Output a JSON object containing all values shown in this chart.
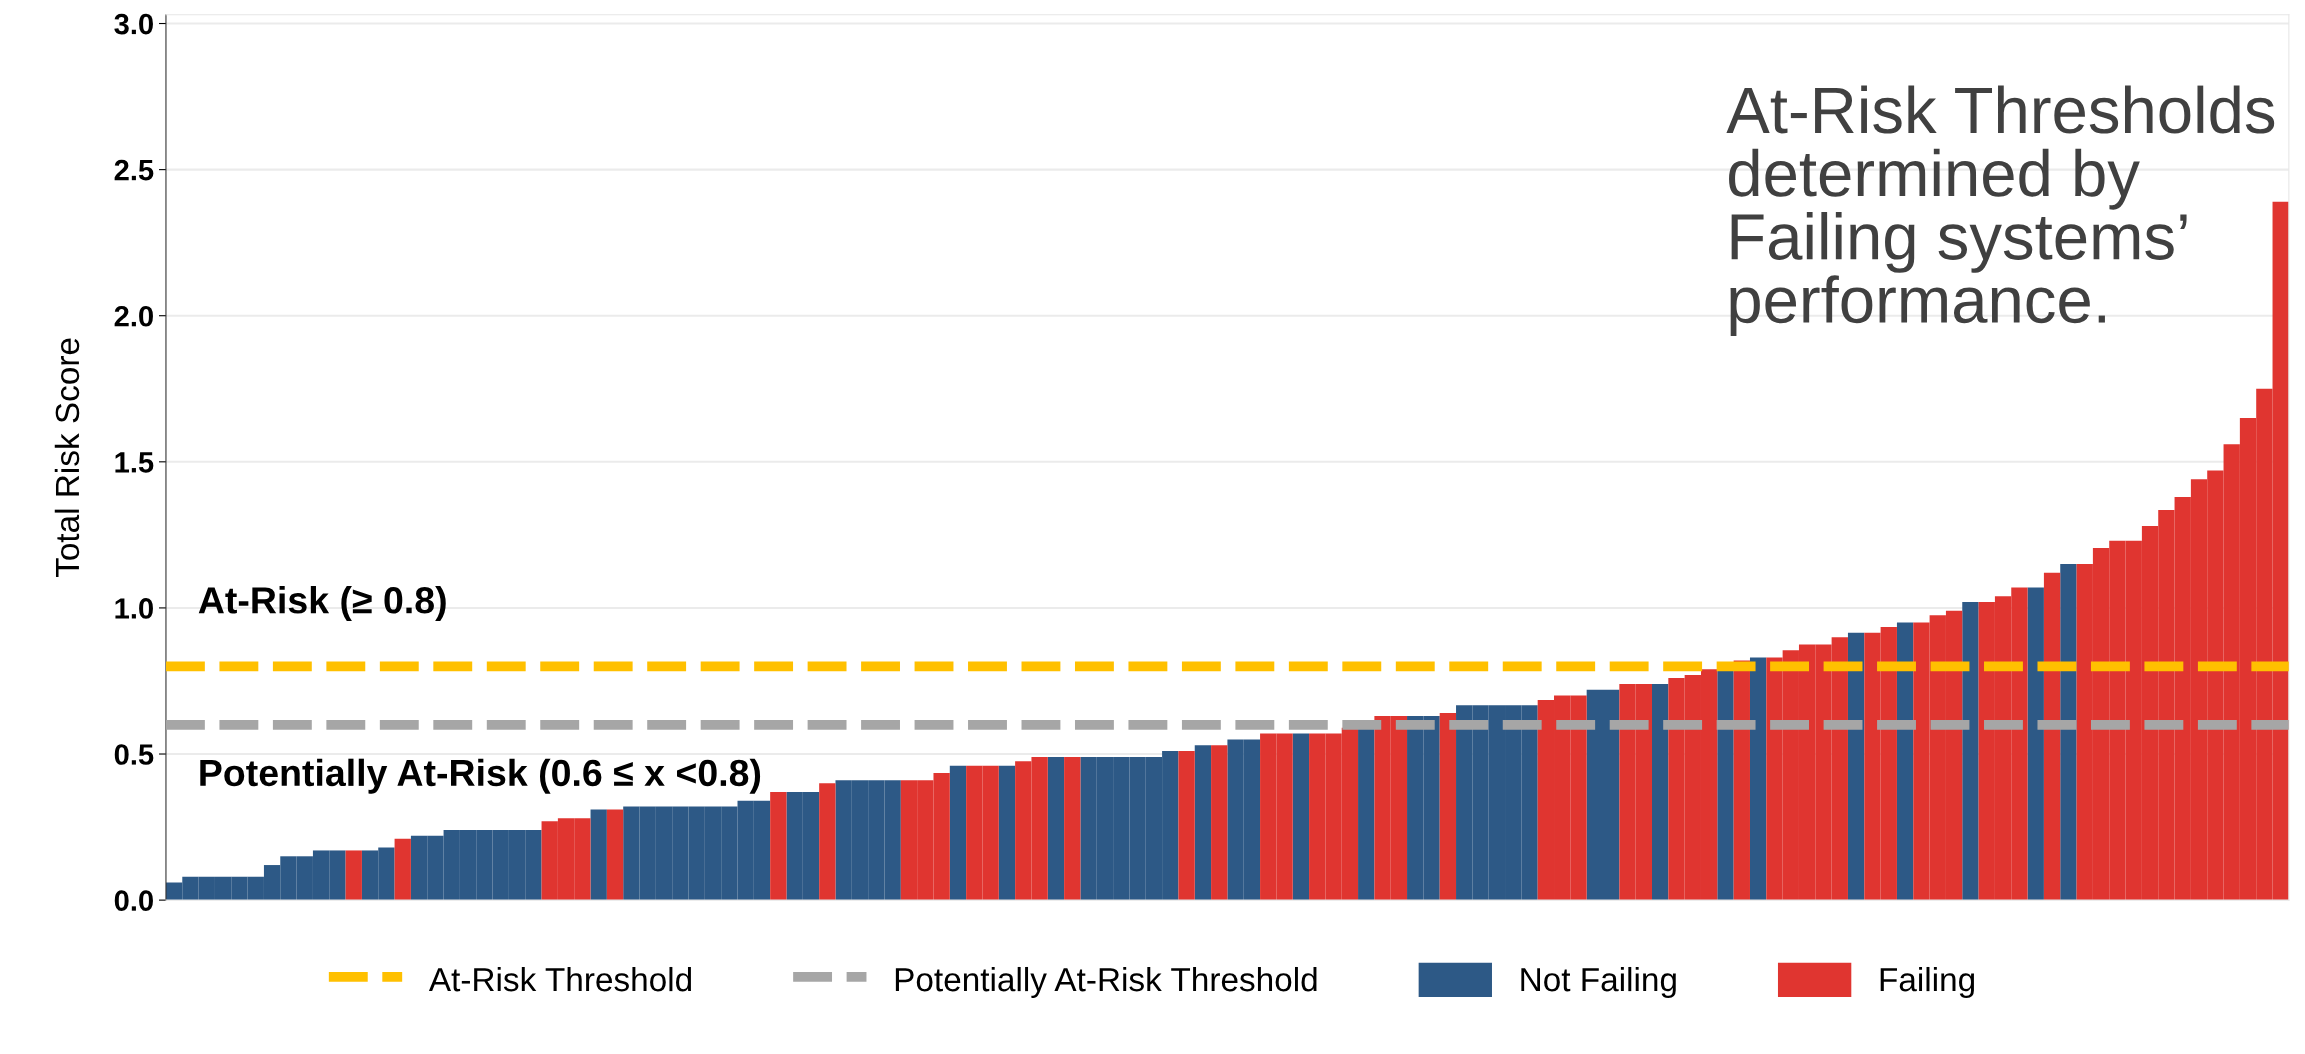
{
  "chart_data": {
    "type": "bar",
    "ylabel": "Total Risk Score",
    "categories": [
      null,
      null,
      null,
      null,
      null,
      null,
      null,
      null,
      null,
      null,
      null,
      null,
      null,
      null,
      null,
      null,
      null,
      null,
      null,
      null,
      null,
      null,
      null,
      null,
      null,
      null,
      null,
      null,
      null,
      null,
      null,
      null,
      null,
      null,
      null,
      null,
      null,
      null,
      null,
      null,
      null,
      null,
      null,
      null,
      null,
      null,
      null,
      null,
      null,
      null,
      null,
      null,
      null,
      null,
      null,
      null,
      null,
      null,
      null,
      null,
      null,
      null,
      null,
      null,
      null,
      null,
      null,
      null,
      null,
      null,
      null,
      null,
      null,
      null,
      null,
      null,
      null,
      null,
      null,
      null,
      null,
      null,
      null,
      null,
      null,
      null,
      null,
      null,
      null,
      null,
      null,
      null,
      null,
      null,
      null,
      null,
      null,
      null,
      null,
      null,
      null,
      null,
      null,
      null,
      null,
      null,
      null,
      null,
      null,
      null,
      null,
      null,
      null,
      null,
      null,
      null,
      null,
      null,
      null,
      null,
      null,
      null,
      null,
      null,
      null,
      null,
      null,
      null,
      null,
      null
    ],
    "series": [
      {
        "name": "Not Failing",
        "color": "#2d5986",
        "values": [
          0.06,
          0.08,
          0.08,
          0.08,
          0.08,
          0.08,
          0.12,
          0.15,
          0.15,
          0.17,
          0.17,
          null,
          0.17,
          0.18,
          null,
          0.22,
          0.22,
          0.24,
          0.24,
          0.24,
          0.24,
          0.24,
          0.24,
          null,
          null,
          null,
          0.31,
          null,
          0.32,
          0.32,
          0.32,
          0.32,
          0.32,
          0.32,
          0.32,
          0.34,
          0.34,
          null,
          0.37,
          0.37,
          null,
          0.41,
          0.41,
          0.41,
          0.41,
          null,
          null,
          null,
          0.46,
          null,
          null,
          0.46,
          null,
          null,
          0.49,
          null,
          0.49,
          0.49,
          0.49,
          0.49,
          0.49,
          0.51,
          null,
          0.53,
          null,
          0.55,
          0.55,
          null,
          null,
          0.57,
          null,
          null,
          null,
          0.59,
          null,
          null,
          0.63,
          0.63,
          null,
          0.667,
          0.667,
          0.667,
          0.667,
          0.667,
          null,
          null,
          null,
          0.72,
          0.72,
          null,
          null,
          0.74,
          null,
          null,
          null,
          0.79,
          null,
          0.83,
          null,
          null,
          null,
          null,
          null,
          0.915,
          null,
          null,
          0.95,
          null,
          null,
          null,
          1.02,
          null,
          null,
          null,
          1.07,
          null,
          1.15,
          null,
          null,
          null,
          null,
          null,
          null,
          null,
          null,
          null,
          null,
          null,
          null,
          null
        ]
      },
      {
        "name": "Failing",
        "color": "#e03530",
        "values": [
          null,
          null,
          null,
          null,
          null,
          null,
          null,
          null,
          null,
          null,
          null,
          0.17,
          null,
          null,
          0.21,
          null,
          null,
          null,
          null,
          null,
          null,
          null,
          null,
          0.27,
          0.28,
          0.28,
          null,
          0.31,
          null,
          null,
          null,
          null,
          null,
          null,
          null,
          null,
          null,
          0.37,
          null,
          null,
          0.4,
          null,
          null,
          null,
          null,
          0.41,
          0.41,
          0.435,
          null,
          0.46,
          0.46,
          null,
          0.475,
          0.49,
          null,
          0.49,
          null,
          null,
          null,
          null,
          null,
          null,
          0.51,
          null,
          0.53,
          null,
          null,
          0.57,
          0.57,
          null,
          0.57,
          0.57,
          0.59,
          null,
          0.63,
          0.63,
          null,
          null,
          0.64,
          null,
          null,
          null,
          null,
          null,
          0.685,
          0.7,
          0.7,
          null,
          null,
          0.74,
          0.74,
          null,
          0.76,
          0.77,
          0.79,
          null,
          0.82,
          null,
          0.83,
          0.855,
          0.875,
          0.875,
          0.9,
          null,
          0.915,
          0.935,
          null,
          0.95,
          0.975,
          0.99,
          null,
          1.02,
          1.04,
          1.07,
          null,
          1.12,
          null,
          1.15,
          1.205,
          1.23,
          1.23,
          1.28,
          1.335,
          1.38,
          1.44,
          1.47,
          1.56,
          1.65,
          1.75,
          2.39
        ]
      }
    ],
    "ylim": [
      0,
      3.03
    ],
    "yticks": [
      {
        "value": 0,
        "label": "0.0"
      },
      0.5,
      {
        "value": 1,
        "label": "1.0"
      },
      1.5,
      {
        "value": 2,
        "label": "2.0"
      },
      2.5,
      {
        "value": 3,
        "label": "3.0"
      }
    ],
    "grid": "y",
    "legend": "bottom",
    "tick_labels": "y",
    "ref_lines": [
      {
        "axis": "y",
        "value": 0.8,
        "label": "At-Risk Threshold",
        "color": "#ffc000",
        "line_style": "dashed"
      },
      {
        "axis": "y",
        "value": 0.6,
        "label": "Potentially At-Risk Threshold",
        "color": "#a6a6a6",
        "line_style": "dashed"
      }
    ],
    "annotations": [
      "At-Risk (≥ 0.8)",
      "Potentially At-Risk (0.6 ≤ x <0.8)",
      "At-Risk Thresholds\ndetermined by\nFailing systems’\nperformance."
    ]
  }
}
